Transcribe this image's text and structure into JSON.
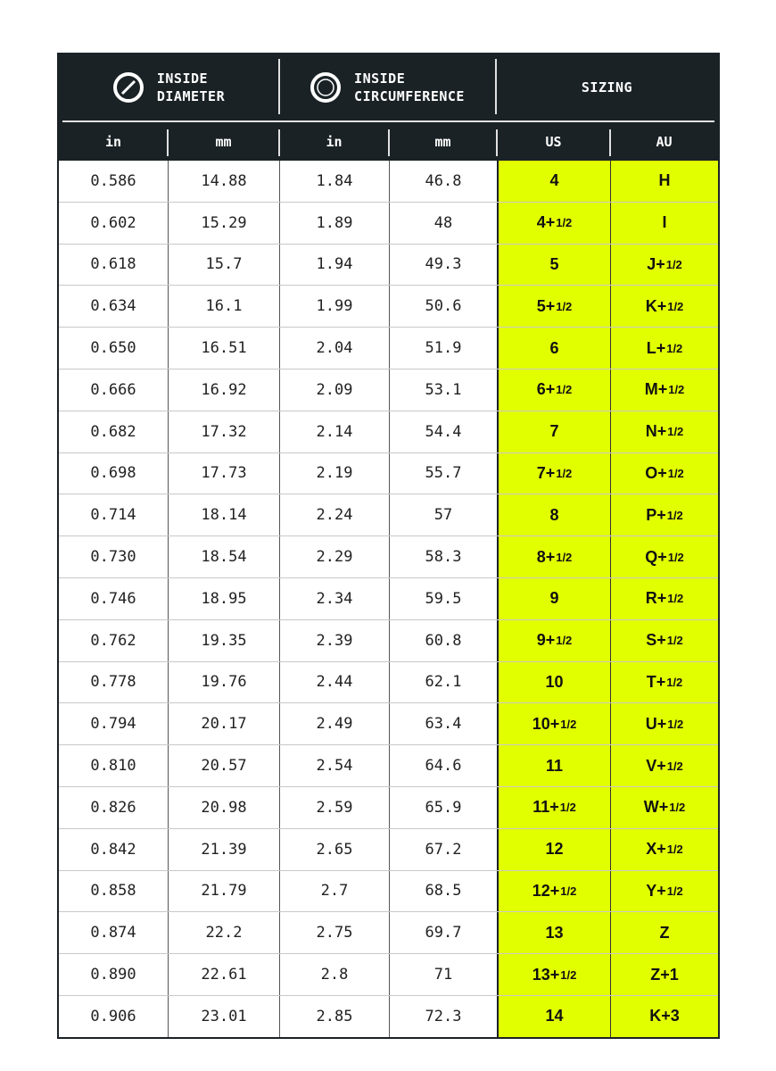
{
  "header": {
    "group_diameter": [
      "INSIDE",
      "DIAMETER"
    ],
    "group_circumference": [
      "INSIDE",
      "CIRCUMFERENCE"
    ],
    "group_sizing": "SIZING",
    "columns": [
      "in",
      "mm",
      "in",
      "mm",
      "US",
      "AU"
    ],
    "icons": {
      "diameter": "circle-diameter-icon",
      "circumference": "circle-circumference-icon"
    }
  },
  "colors": {
    "header_bg": "#1a2226",
    "sizing_bg": "#e2ff00"
  },
  "rows": [
    [
      "0.586",
      "14.88",
      "1.84",
      "46.8",
      "4",
      "H"
    ],
    [
      "0.602",
      "15.29",
      "1.89",
      "48",
      "4+1/2",
      "I"
    ],
    [
      "0.618",
      "15.7",
      "1.94",
      "49.3",
      "5",
      "J+1/2"
    ],
    [
      "0.634",
      "16.1",
      "1.99",
      "50.6",
      "5+1/2",
      "K+1/2"
    ],
    [
      "0.650",
      "16.51",
      "2.04",
      "51.9",
      "6",
      "L+1/2"
    ],
    [
      "0.666",
      "16.92",
      "2.09",
      "53.1",
      "6+1/2",
      "M+1/2"
    ],
    [
      "0.682",
      "17.32",
      "2.14",
      "54.4",
      "7",
      "N+1/2"
    ],
    [
      "0.698",
      "17.73",
      "2.19",
      "55.7",
      "7+1/2",
      "O+1/2"
    ],
    [
      "0.714",
      "18.14",
      "2.24",
      "57",
      "8",
      "P+1/2"
    ],
    [
      "0.730",
      "18.54",
      "2.29",
      "58.3",
      "8+1/2",
      "Q+1/2"
    ],
    [
      "0.746",
      "18.95",
      "2.34",
      "59.5",
      "9",
      "R+1/2"
    ],
    [
      "0.762",
      "19.35",
      "2.39",
      "60.8",
      "9+1/2",
      "S+1/2"
    ],
    [
      "0.778",
      "19.76",
      "2.44",
      "62.1",
      "10",
      "T+1/2"
    ],
    [
      "0.794",
      "20.17",
      "2.49",
      "63.4",
      "10+1/2",
      "U+1/2"
    ],
    [
      "0.810",
      "20.57",
      "2.54",
      "64.6",
      "11",
      "V+1/2"
    ],
    [
      "0.826",
      "20.98",
      "2.59",
      "65.9",
      "11+1/2",
      "W+1/2"
    ],
    [
      "0.842",
      "21.39",
      "2.65",
      "67.2",
      "12",
      "X+1/2"
    ],
    [
      "0.858",
      "21.79",
      "2.7",
      "68.5",
      "12+1/2",
      "Y+1/2"
    ],
    [
      "0.874",
      "22.2",
      "2.75",
      "69.7",
      "13",
      "Z"
    ],
    [
      "0.890",
      "22.61",
      "2.8",
      "71",
      "13+1/2",
      "Z+1"
    ],
    [
      "0.906",
      "23.01",
      "2.85",
      "72.3",
      "14",
      "K+3"
    ]
  ]
}
